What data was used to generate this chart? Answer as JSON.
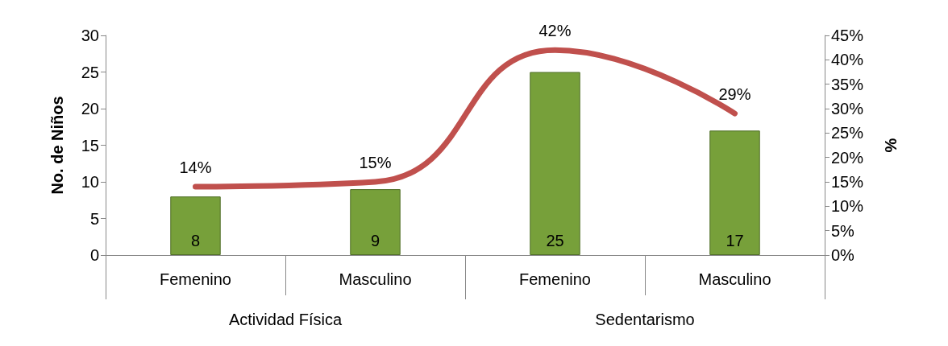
{
  "chart_data": {
    "type": "bar",
    "categories": [
      "Femenino",
      "Masculino",
      "Femenino",
      "Masculino"
    ],
    "annotations": [
      "Actividad Física",
      "Sedentarismo"
    ],
    "ylabel": "No. de Niños",
    "y2label": "%",
    "ylim": [
      0,
      30
    ],
    "yticks": [
      0,
      5,
      10,
      15,
      20,
      25,
      30
    ],
    "y2lim": [
      0,
      45
    ],
    "y2ticks": [
      {
        "value": 0,
        "label": "0%"
      },
      {
        "value": 5,
        "label": "5%"
      },
      {
        "value": 10,
        "label": "10%"
      },
      {
        "value": 15,
        "label": "15%"
      },
      {
        "value": 20,
        "label": "20%"
      },
      {
        "value": 25,
        "label": "25%"
      },
      {
        "value": 30,
        "label": "30%"
      },
      {
        "value": 35,
        "label": "35%"
      },
      {
        "value": 40,
        "label": "40%"
      },
      {
        "value": 45,
        "label": "45%"
      }
    ],
    "series": [
      {
        "color": "#77a03a",
        "values": [
          8,
          9,
          25,
          17
        ],
        "value_labels": [
          "8",
          "9",
          "25",
          "17"
        ]
      },
      {
        "type": "line",
        "axis": "y2",
        "color": "#c0504d",
        "values": [
          14,
          15,
          42,
          29
        ],
        "value_labels": [
          "14%",
          "15%",
          "42%",
          "29%"
        ]
      }
    ],
    "marker": "none",
    "grid": false
  }
}
